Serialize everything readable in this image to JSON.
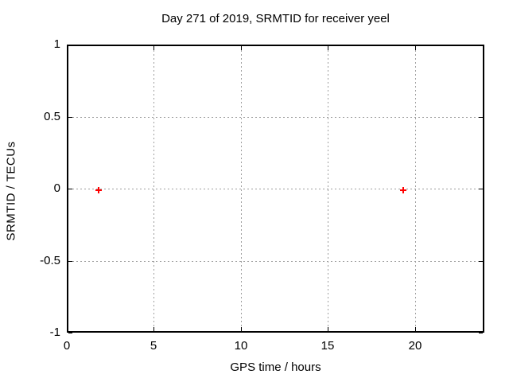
{
  "chart_data": {
    "type": "scatter",
    "title": "Day 271 of 2019, SRMTID for receiver yeel",
    "xlabel": "GPS time / hours",
    "ylabel": "SRMTID / TECUs",
    "xlim": [
      0,
      24
    ],
    "ylim": [
      -1,
      1
    ],
    "xticks": [
      0,
      5,
      10,
      15,
      20
    ],
    "yticks": [
      -1,
      -0.5,
      0,
      0.5,
      1
    ],
    "grid": true,
    "legend": false,
    "series": [
      {
        "name": "SRMTID",
        "marker": "plus",
        "color": "#ff0000",
        "points": [
          {
            "x": 1.75,
            "y": 0
          },
          {
            "x": 19.25,
            "y": 0
          }
        ]
      }
    ],
    "colors": {
      "background": "#ffffff",
      "border": "#000000",
      "grid": "#9e9e9e",
      "text": "#000000"
    }
  }
}
